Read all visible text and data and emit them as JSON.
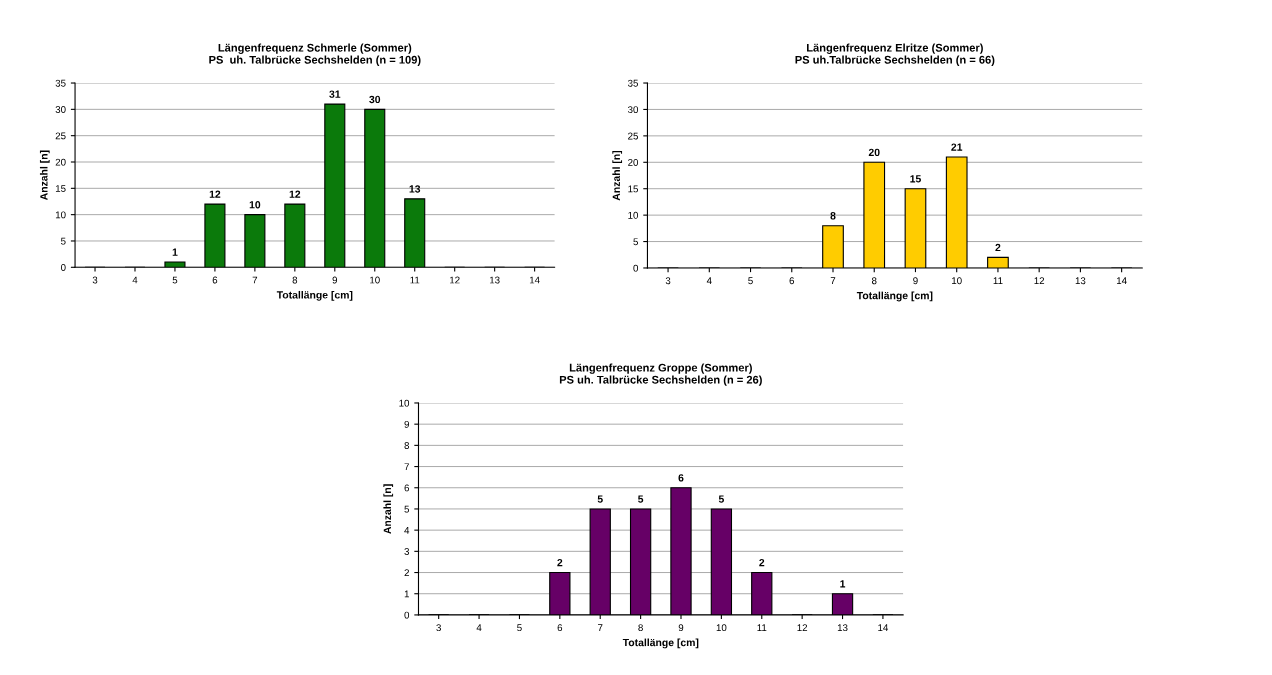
{
  "chart_data": [
    {
      "type": "bar",
      "title": "Längenfrequenz Schmerle (Sommer)\nPS  uh. Talbrücke Sechshelden (n = 109)",
      "xlabel": "Totallänge [cm]",
      "ylabel": "Anzahl [n]",
      "categories": [
        "3",
        "4",
        "5",
        "6",
        "7",
        "8",
        "9",
        "10",
        "11",
        "12",
        "13",
        "14"
      ],
      "values": [
        0,
        0,
        1,
        12,
        10,
        12,
        31,
        30,
        13,
        0,
        0,
        0
      ],
      "value_labels": [
        null,
        null,
        "1",
        "12",
        "10",
        "12",
        "31",
        "30",
        "13",
        null,
        null,
        null
      ],
      "color": "#0b7a0b",
      "ylim": [
        0,
        35
      ],
      "yticks": [
        0,
        5,
        10,
        15,
        20,
        25,
        30,
        35
      ],
      "grid": "y",
      "legend": false
    },
    {
      "type": "bar",
      "title": "Längenfrequenz Elritze (Sommer)\nPS uh.Talbrücke Sechshelden (n = 66)",
      "xlabel": "Totallänge [cm]",
      "ylabel": "Anzahl [n]",
      "categories": [
        "3",
        "4",
        "5",
        "6",
        "7",
        "8",
        "9",
        "10",
        "11",
        "12",
        "13",
        "14"
      ],
      "values": [
        0,
        0,
        0,
        0,
        8,
        20,
        15,
        21,
        2,
        0,
        0,
        0
      ],
      "value_labels": [
        null,
        null,
        null,
        null,
        "8",
        "20",
        "15",
        "21",
        "2",
        null,
        null,
        null
      ],
      "color": "#ffcc00",
      "ylim": [
        0,
        35
      ],
      "yticks": [
        0,
        5,
        10,
        15,
        20,
        25,
        30,
        35
      ],
      "grid": "y",
      "legend": false
    },
    {
      "type": "bar",
      "title": "Längenfrequenz Groppe (Sommer)\nPS uh. Talbrücke Sechshelden (n = 26)",
      "xlabel": "Totallänge [cm]",
      "ylabel": "Anzahl [n]",
      "categories": [
        "3",
        "4",
        "5",
        "6",
        "7",
        "8",
        "9",
        "10",
        "11",
        "12",
        "13",
        "14"
      ],
      "values": [
        0,
        0,
        0,
        2,
        5,
        5,
        6,
        5,
        2,
        0,
        1,
        0
      ],
      "value_labels": [
        null,
        null,
        null,
        "2",
        "5",
        "5",
        "6",
        "5",
        "2",
        null,
        "1",
        null
      ],
      "color": "#660066",
      "ylim": [
        0,
        10
      ],
      "yticks": [
        0,
        1,
        2,
        3,
        4,
        5,
        6,
        7,
        8,
        9,
        10
      ],
      "grid": "y",
      "legend": false
    }
  ]
}
